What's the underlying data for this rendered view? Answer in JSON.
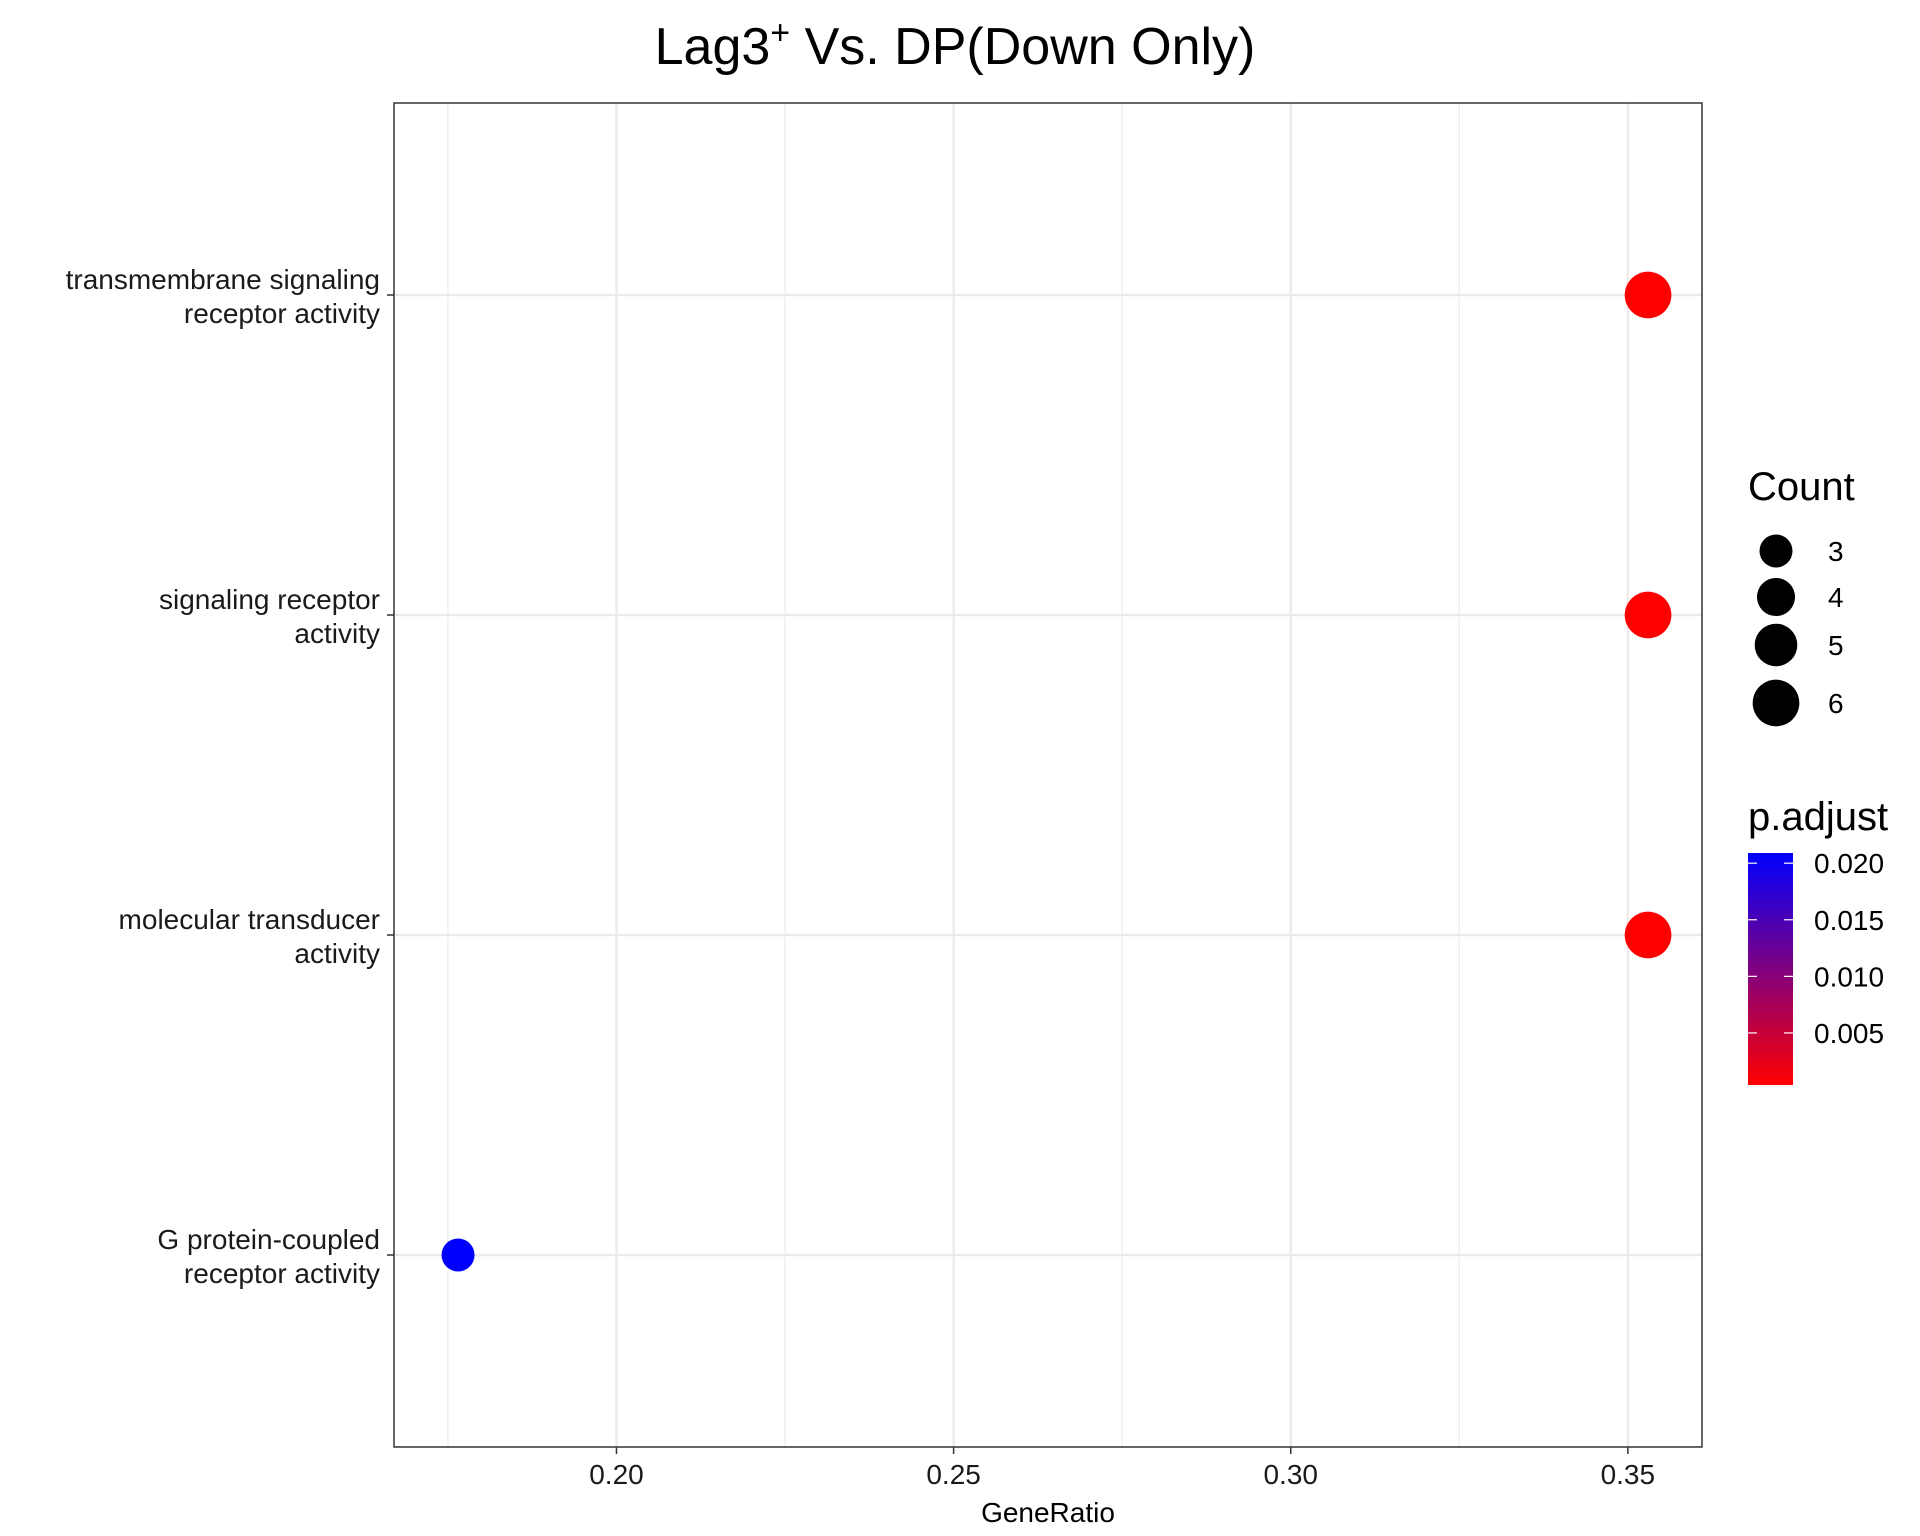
{
  "chart_data": {
    "type": "scatter",
    "title": "Lag3",
    "title_superscript": "+",
    "title_rest": " Vs. DP(Down Only)",
    "xlabel": "GeneRatio",
    "ylabel": "",
    "xlim": [
      0.167,
      0.361
    ],
    "x_ticks": [
      0.2,
      0.25,
      0.3,
      0.35
    ],
    "x_tick_labels": [
      "0.20",
      "0.25",
      "0.30",
      "0.35"
    ],
    "x_minor_ticks": [
      0.175,
      0.225,
      0.275,
      0.325
    ],
    "categories": [
      [
        "transmembrane signaling",
        "receptor activity"
      ],
      [
        "signaling receptor",
        "activity"
      ],
      [
        "molecular transducer",
        "activity"
      ],
      [
        "G protein-coupled",
        "receptor activity"
      ]
    ],
    "points": [
      {
        "category_index": 0,
        "x": 0.353,
        "count": 6,
        "p_adjust": 0.0004
      },
      {
        "category_index": 1,
        "x": 0.353,
        "count": 6,
        "p_adjust": 0.0004
      },
      {
        "category_index": 2,
        "x": 0.353,
        "count": 6,
        "p_adjust": 0.0004
      },
      {
        "category_index": 3,
        "x": 0.1765,
        "count": 3,
        "p_adjust": 0.0209
      }
    ],
    "grid": true,
    "legend_position": "right",
    "size_legend": {
      "title": "Count",
      "entries": [
        {
          "label": "3",
          "value": 3
        },
        {
          "label": "4",
          "value": 4
        },
        {
          "label": "5",
          "value": 5
        },
        {
          "label": "6",
          "value": 6
        }
      ]
    },
    "color_legend": {
      "title": "p.adjust",
      "range": [
        0.0004,
        0.0209
      ],
      "ticks": [
        0.02,
        0.015,
        0.01,
        0.005
      ],
      "tick_labels": [
        "0.020",
        "0.015",
        "0.010",
        "0.005"
      ],
      "low_color": "#ff0000",
      "high_color": "#0000ff"
    },
    "colors": {
      "grid": "#ebebeb",
      "panel_border": "#333333"
    }
  }
}
